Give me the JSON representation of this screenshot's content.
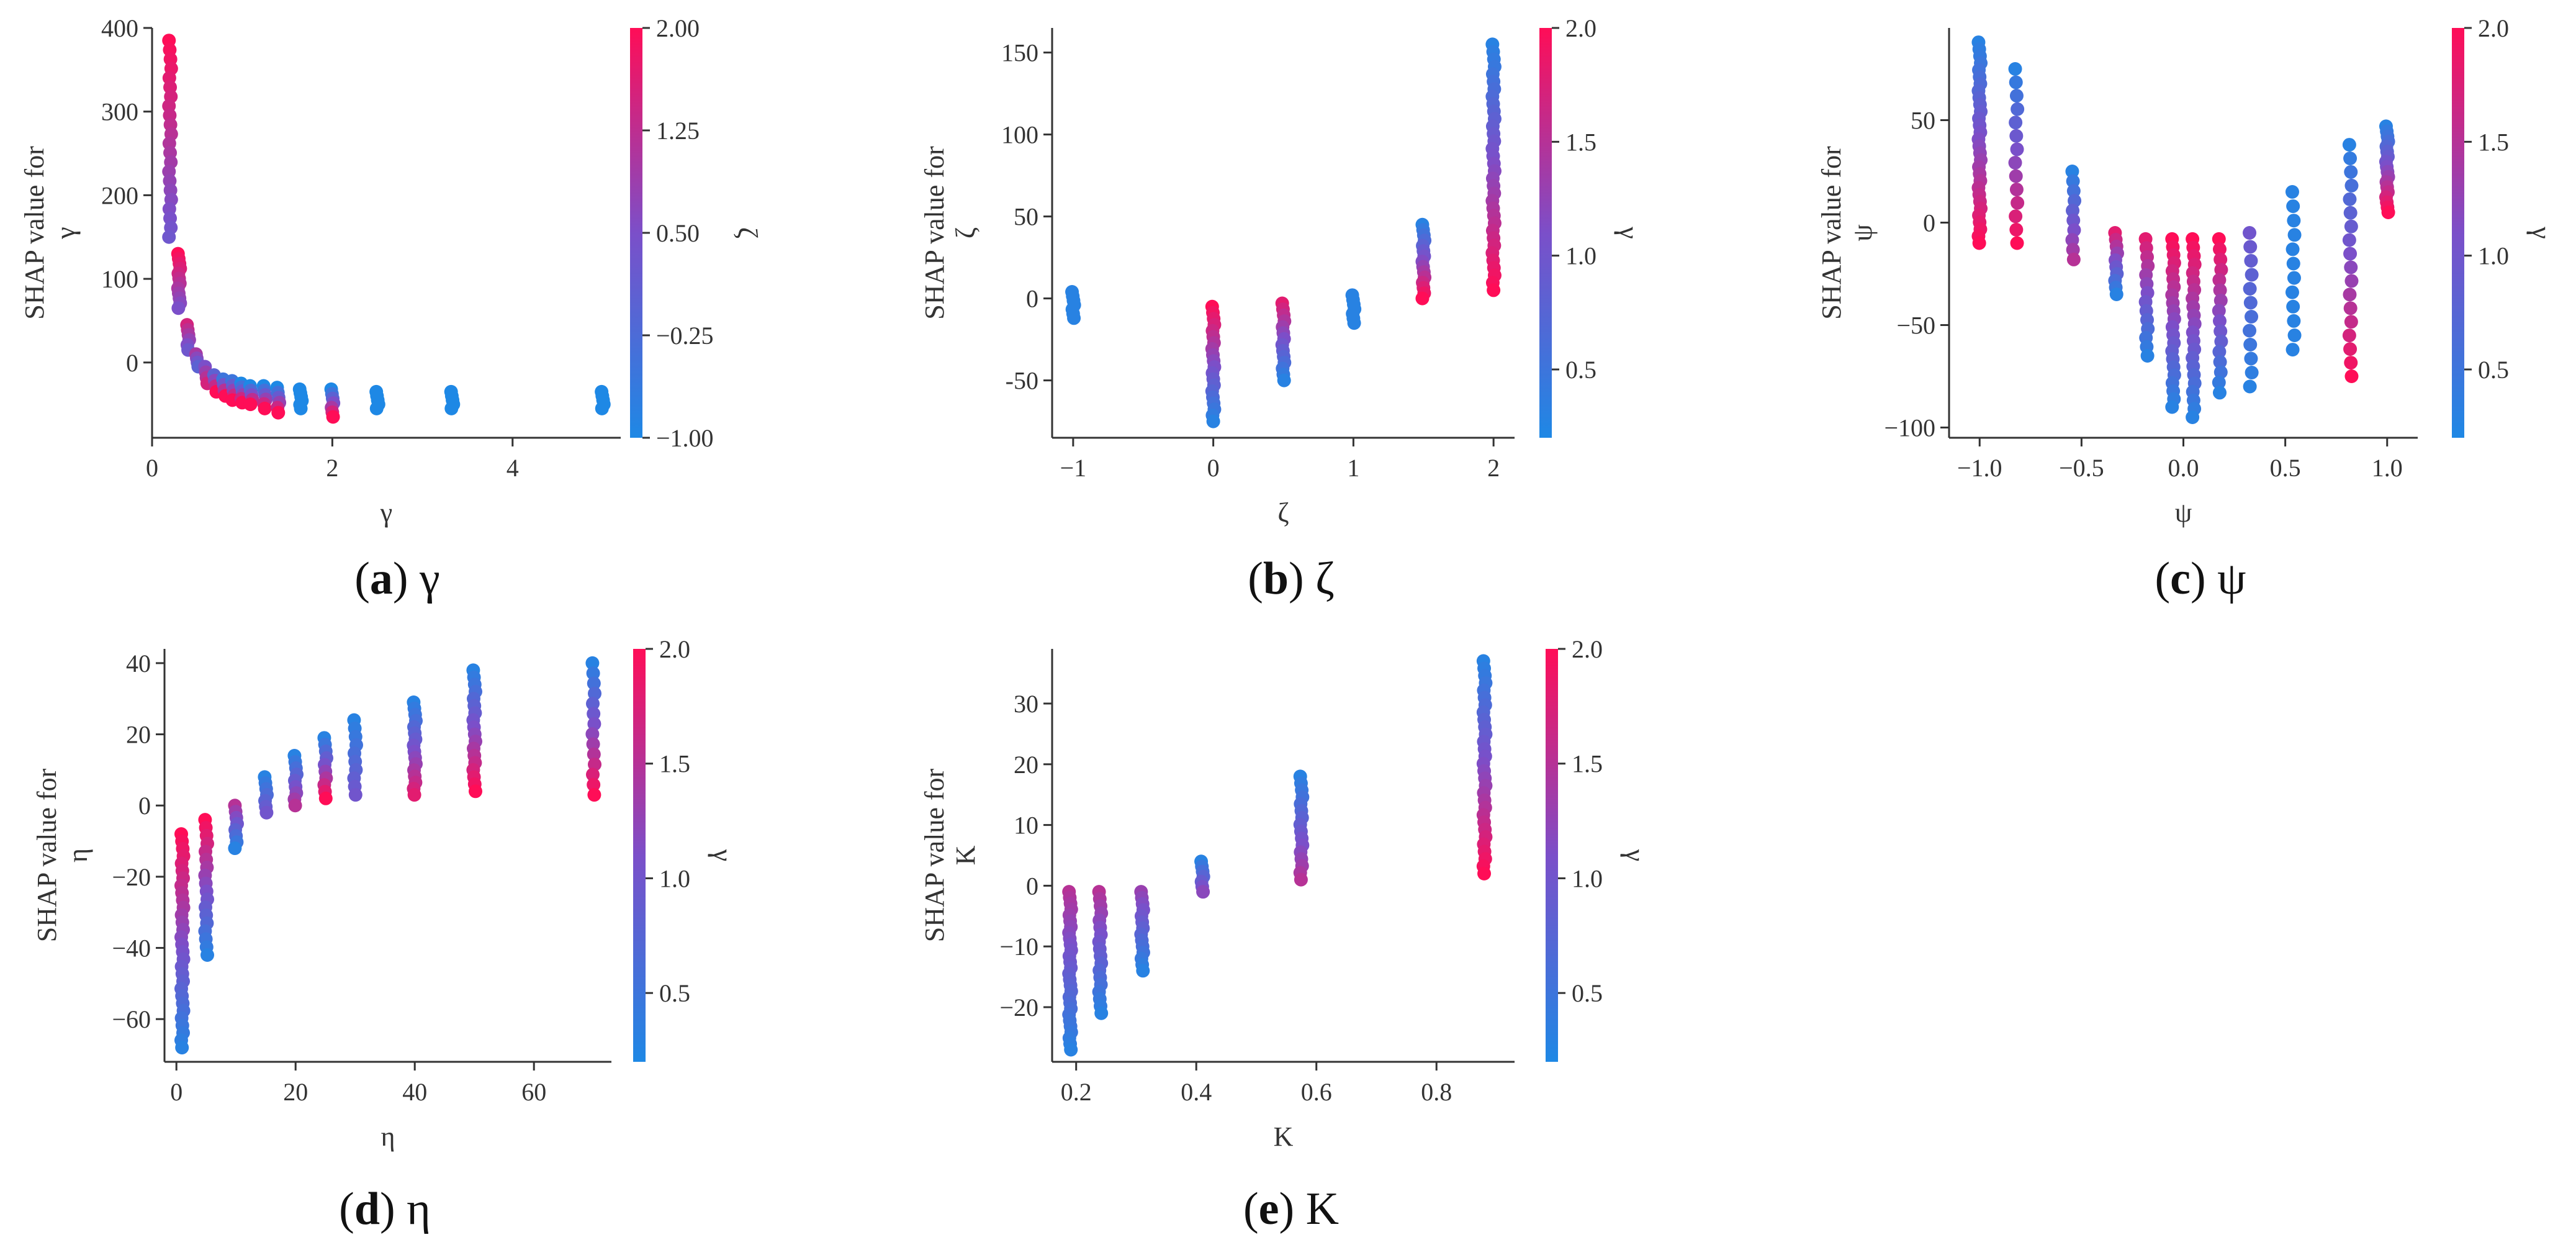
{
  "colors": {
    "low": "#1e88e5",
    "mid": "#7b4fc9",
    "high": "#ff0d57",
    "axis": "#333333",
    "text": "#333333"
  },
  "captions": [
    {
      "letter": "a",
      "symbol": "γ"
    },
    {
      "letter": "b",
      "symbol": "ζ"
    },
    {
      "letter": "c",
      "symbol": "ψ"
    },
    {
      "letter": "d",
      "symbol": "η"
    },
    {
      "letter": "e",
      "symbol": "K"
    }
  ],
  "chart_data": [
    {
      "type": "scatter",
      "id": "a",
      "xlabel": "γ",
      "ylabel": [
        "SHAP value for",
        "γ"
      ],
      "xlim": [
        0,
        5.2
      ],
      "ylim": [
        -90,
        400
      ],
      "xticks": [
        0,
        2,
        4
      ],
      "yticks": [
        0,
        100,
        200,
        300,
        400
      ],
      "color_feature": "ζ",
      "color_range": [
        -1.0,
        2.0
      ],
      "color_ticks": [
        "2.00",
        "1.25",
        "0.50",
        "−0.25",
        "−1.00"
      ],
      "clusters": [
        {
          "x": 0.2,
          "y_min": 150,
          "y_max": 385,
          "c_top": 2.0,
          "c_bottom": 0.3,
          "n": 22
        },
        {
          "x": 0.3,
          "y_min": 65,
          "y_max": 130,
          "c_top": 2.0,
          "c_bottom": 0.5,
          "n": 12
        },
        {
          "x": 0.4,
          "y_min": 15,
          "y_max": 45,
          "c_top": 1.5,
          "c_bottom": 0.3,
          "n": 6
        },
        {
          "x": 0.5,
          "y_min": -5,
          "y_max": 10,
          "c_top": 1.0,
          "c_bottom": 0.0,
          "n": 4
        },
        {
          "x": 0.6,
          "y_min": -25,
          "y_max": -5,
          "c_top": 0.5,
          "c_bottom": 1.5,
          "n": 4
        },
        {
          "x": 0.7,
          "y_min": -35,
          "y_max": -15,
          "c_top": 0.0,
          "c_bottom": 2.0,
          "n": 4
        },
        {
          "x": 0.8,
          "y_min": -40,
          "y_max": -20,
          "c_top": -0.5,
          "c_bottom": 2.0,
          "n": 4
        },
        {
          "x": 0.9,
          "y_min": -45,
          "y_max": -22,
          "c_top": -0.5,
          "c_bottom": 2.0,
          "n": 5
        },
        {
          "x": 1.0,
          "y_min": -48,
          "y_max": -25,
          "c_top": -1.0,
          "c_bottom": 2.0,
          "n": 6
        },
        {
          "x": 1.1,
          "y_min": -50,
          "y_max": -28,
          "c_top": -1.0,
          "c_bottom": 2.0,
          "n": 5
        },
        {
          "x": 1.25,
          "y_min": -55,
          "y_max": -28,
          "c_top": -1.0,
          "c_bottom": 2.0,
          "n": 6
        },
        {
          "x": 1.4,
          "y_min": -60,
          "y_max": -30,
          "c_top": -1.0,
          "c_bottom": 2.0,
          "n": 6
        },
        {
          "x": 1.65,
          "y_min": -55,
          "y_max": -32,
          "c_top": -1.0,
          "c_bottom": -1.0,
          "n": 6
        },
        {
          "x": 2.0,
          "y_min": -65,
          "y_max": -32,
          "c_top": -1.0,
          "c_bottom": 2.0,
          "n": 7
        },
        {
          "x": 2.5,
          "y_min": -55,
          "y_max": -35,
          "c_top": -1.0,
          "c_bottom": -1.0,
          "n": 5
        },
        {
          "x": 3.33,
          "y_min": -55,
          "y_max": -35,
          "c_top": -1.0,
          "c_bottom": -1.0,
          "n": 5
        },
        {
          "x": 5.0,
          "y_min": -55,
          "y_max": -35,
          "c_top": -1.0,
          "c_bottom": -1.0,
          "n": 5
        }
      ]
    },
    {
      "type": "scatter",
      "id": "b",
      "xlabel": "ζ",
      "ylabel": [
        "SHAP value for",
        "ζ"
      ],
      "xlim": [
        -1.15,
        2.15
      ],
      "ylim": [
        -85,
        165
      ],
      "xticks": [
        -1,
        0,
        1,
        2
      ],
      "yticks": [
        -50,
        0,
        50,
        100,
        150
      ],
      "color_feature": "γ",
      "color_range": [
        0.2,
        2.0
      ],
      "color_ticks": [
        "2.0",
        "1.5",
        "1.0",
        "0.5"
      ],
      "clusters": [
        {
          "x": -1,
          "y_min": -12,
          "y_max": 4,
          "c_top": 0.3,
          "c_bottom": 0.3,
          "n": 7
        },
        {
          "x": 0,
          "y_min": -75,
          "y_max": -5,
          "c_top": 2.0,
          "c_bottom": 0.3,
          "n": 20
        },
        {
          "x": 0.5,
          "y_min": -50,
          "y_max": -3,
          "c_top": 1.8,
          "c_bottom": 0.3,
          "n": 14
        },
        {
          "x": 1,
          "y_min": -15,
          "y_max": 2,
          "c_top": 0.3,
          "c_bottom": 0.3,
          "n": 7
        },
        {
          "x": 1.5,
          "y_min": 0,
          "y_max": 45,
          "c_top": 0.3,
          "c_bottom": 2.0,
          "n": 15
        },
        {
          "x": 2,
          "y_min": 5,
          "y_max": 155,
          "c_top": 0.3,
          "c_bottom": 2.0,
          "n": 34
        }
      ]
    },
    {
      "type": "scatter",
      "id": "c",
      "xlabel": "ψ",
      "ylabel": [
        "SHAP value for",
        "ψ"
      ],
      "xlim": [
        -1.15,
        1.15
      ],
      "ylim": [
        -105,
        95
      ],
      "xticks": [
        -1.0,
        -0.5,
        0.0,
        0.5,
        1.0
      ],
      "xtick_labels": [
        "−1.0",
        "−0.5",
        "0.0",
        "0.5",
        "1.0"
      ],
      "yticks": [
        -100,
        -50,
        0,
        50
      ],
      "ytick_labels": [
        "−100",
        "−50",
        "0",
        "50"
      ],
      "color_feature": "γ",
      "color_range": [
        0.2,
        2.0
      ],
      "color_ticks": [
        "2.0",
        "1.5",
        "1.0",
        "0.5"
      ],
      "clusters": [
        {
          "x": -1.0,
          "y_min": -10,
          "y_max": 88,
          "c_top": 0.3,
          "c_bottom": 2.0,
          "n": 30
        },
        {
          "x": -0.82,
          "y_min": -10,
          "y_max": 75,
          "c_top": 0.3,
          "c_bottom": 2.0,
          "n": 14
        },
        {
          "x": -0.54,
          "y_min": -18,
          "y_max": 25,
          "c_top": 0.3,
          "c_bottom": 1.5,
          "n": 10
        },
        {
          "x": -0.33,
          "y_min": -35,
          "y_max": -5,
          "c_top": 1.8,
          "c_bottom": 0.3,
          "n": 10
        },
        {
          "x": -0.18,
          "y_min": -65,
          "y_max": -8,
          "c_top": 1.8,
          "c_bottom": 0.3,
          "n": 14
        },
        {
          "x": -0.05,
          "y_min": -90,
          "y_max": -8,
          "c_top": 2.0,
          "c_bottom": 0.3,
          "n": 22
        },
        {
          "x": 0.05,
          "y_min": -95,
          "y_max": -8,
          "c_top": 2.0,
          "c_bottom": 0.3,
          "n": 22
        },
        {
          "x": 0.18,
          "y_min": -83,
          "y_max": -8,
          "c_top": 2.0,
          "c_bottom": 0.3,
          "n": 16
        },
        {
          "x": 0.33,
          "y_min": -80,
          "y_max": -5,
          "c_top": 1.0,
          "c_bottom": 0.3,
          "n": 12
        },
        {
          "x": 0.54,
          "y_min": -62,
          "y_max": 15,
          "c_top": 0.3,
          "c_bottom": 0.3,
          "n": 12
        },
        {
          "x": 0.82,
          "y_min": -75,
          "y_max": 38,
          "c_top": 0.3,
          "c_bottom": 2.0,
          "n": 18
        },
        {
          "x": 1.0,
          "y_min": 5,
          "y_max": 47,
          "c_top": 0.3,
          "c_bottom": 2.0,
          "n": 18
        }
      ]
    },
    {
      "type": "scatter",
      "id": "d",
      "xlabel": "η",
      "ylabel": [
        "SHAP value for",
        "η"
      ],
      "xlim": [
        -2,
        73
      ],
      "ylim": [
        -72,
        44
      ],
      "xticks": [
        0,
        20,
        40,
        60
      ],
      "yticks": [
        -60,
        -40,
        -20,
        0,
        20,
        40
      ],
      "ytick_labels": [
        "−60",
        "−40",
        "−20",
        "0",
        "20",
        "40"
      ],
      "color_feature": "γ",
      "color_range": [
        0.2,
        2.0
      ],
      "color_ticks": [
        "2.0",
        "1.5",
        "1.0",
        "0.5"
      ],
      "clusters": [
        {
          "x": 1,
          "y_min": -68,
          "y_max": -8,
          "c_top": 2.0,
          "c_bottom": 0.3,
          "n": 30
        },
        {
          "x": 5,
          "y_min": -42,
          "y_max": -4,
          "c_top": 2.0,
          "c_bottom": 0.3,
          "n": 18
        },
        {
          "x": 10,
          "y_min": -12,
          "y_max": 0,
          "c_top": 1.5,
          "c_bottom": 0.3,
          "n": 8
        },
        {
          "x": 15,
          "y_min": -2,
          "y_max": 8,
          "c_top": 0.3,
          "c_bottom": 1.0,
          "n": 7
        },
        {
          "x": 20,
          "y_min": 0,
          "y_max": 14,
          "c_top": 0.3,
          "c_bottom": 1.5,
          "n": 9
        },
        {
          "x": 25,
          "y_min": 2,
          "y_max": 19,
          "c_top": 0.3,
          "c_bottom": 2.0,
          "n": 10
        },
        {
          "x": 30,
          "y_min": 3,
          "y_max": 24,
          "c_top": 0.3,
          "c_bottom": 1.0,
          "n": 10
        },
        {
          "x": 40,
          "y_min": 3,
          "y_max": 29,
          "c_top": 0.3,
          "c_bottom": 1.8,
          "n": 16
        },
        {
          "x": 50,
          "y_min": 4,
          "y_max": 38,
          "c_top": 0.3,
          "c_bottom": 2.0,
          "n": 18
        },
        {
          "x": 70,
          "y_min": 3,
          "y_max": 40,
          "c_top": 0.3,
          "c_bottom": 2.0,
          "n": 14
        }
      ]
    },
    {
      "type": "scatter",
      "id": "e",
      "xlabel": "K",
      "ylabel": [
        "SHAP value for",
        "K"
      ],
      "xlim": [
        0.16,
        0.93
      ],
      "ylim": [
        -29,
        39
      ],
      "xticks": [
        0.2,
        0.4,
        0.6,
        0.8
      ],
      "yticks": [
        -20,
        -10,
        0,
        10,
        20,
        30
      ],
      "ytick_labels": [
        "−20",
        "−10",
        "0",
        "10",
        "20",
        "30"
      ],
      "color_feature": "γ",
      "color_range": [
        0.2,
        2.0
      ],
      "color_ticks": [
        "2.0",
        "1.5",
        "1.0",
        "0.5"
      ],
      "clusters": [
        {
          "x": 0.19,
          "y_min": -27,
          "y_max": -1,
          "c_top": 1.5,
          "c_bottom": 0.3,
          "n": 28
        },
        {
          "x": 0.24,
          "y_min": -21,
          "y_max": -1,
          "c_top": 1.5,
          "c_bottom": 0.3,
          "n": 18
        },
        {
          "x": 0.31,
          "y_min": -14,
          "y_max": -1,
          "c_top": 1.3,
          "c_bottom": 0.3,
          "n": 14
        },
        {
          "x": 0.41,
          "y_min": -1,
          "y_max": 4,
          "c_top": 0.3,
          "c_bottom": 1.2,
          "n": 7
        },
        {
          "x": 0.575,
          "y_min": 1,
          "y_max": 18,
          "c_top": 0.3,
          "c_bottom": 1.5,
          "n": 16
        },
        {
          "x": 0.88,
          "y_min": 2,
          "y_max": 37,
          "c_top": 0.3,
          "c_bottom": 2.0,
          "n": 30
        }
      ]
    }
  ]
}
